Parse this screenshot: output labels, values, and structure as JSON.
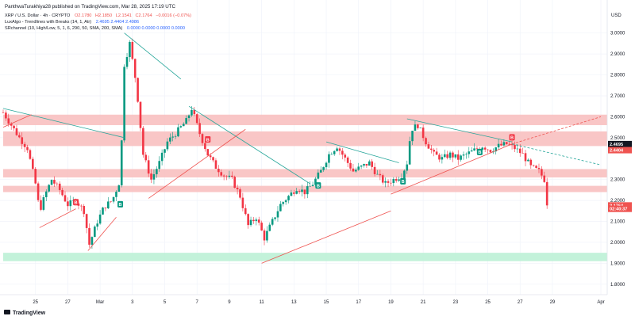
{
  "header": {
    "publisher": "PanthwaTurakhiya28 published on TradingView.com, Mar 28, 2025 17:19 UTC",
    "symbol_line": {
      "symbol": "XRP / U.S. Dollar · 4h · CRYPTO",
      "o": "O2.1780",
      "h": "H2.1850",
      "l": "L2.1541",
      "c": "C2.1764",
      "chg": "−0.0016 (−0.07%)"
    },
    "indicators": [
      {
        "label": "LuxAlgo - Trendlines with Breaks (14, 1, Atr)",
        "values": "2.4695  2.4404  2.4986"
      },
      {
        "label": "SRchannel (10, High/Low, 5, 1, 6, 290, 50, SMA, 200, SMA)",
        "values": "0.0000  0.0000  0.0000  0.0000"
      }
    ]
  },
  "currency_label": "USD",
  "price_tags": [
    {
      "text": "2.4695",
      "value": 2.4695,
      "color": "#131722"
    },
    {
      "text": "2.4404",
      "value": 2.4404,
      "color": "#ef5350"
    },
    {
      "text": "2.1764",
      "value": 2.1764,
      "color": "#ef5350"
    },
    {
      "text": "02:40:37",
      "value": 2.16,
      "color": "#ef5350"
    }
  ],
  "footer_logo": "TradingView",
  "chart_data": {
    "type": "candlestick",
    "title": "",
    "xlabel": "",
    "ylabel": "USD",
    "ylim": [
      1.75,
      3.12
    ],
    "yticks": [
      "3.0000",
      "2.9000",
      "2.8000",
      "2.7000",
      "2.6000",
      "2.5000",
      "2.3000",
      "2.2000",
      "2.1000",
      "2.0000",
      "1.9000",
      "1.8000"
    ],
    "ytick_values": [
      3.0,
      2.9,
      2.8,
      2.7,
      2.6,
      2.5,
      2.3,
      2.2,
      2.1,
      2.0,
      1.9,
      1.8
    ],
    "xlim": [
      "2025-02-23",
      "2025-04-01"
    ],
    "xticks": [
      {
        "label": "25",
        "date": "2025-02-25"
      },
      {
        "label": "27",
        "date": "2025-02-27"
      },
      {
        "label": "Mar",
        "date": "2025-03-01"
      },
      {
        "label": "3",
        "date": "2025-03-03"
      },
      {
        "label": "5",
        "date": "2025-03-05"
      },
      {
        "label": "7",
        "date": "2025-03-07"
      },
      {
        "label": "9",
        "date": "2025-03-09"
      },
      {
        "label": "11",
        "date": "2025-03-11"
      },
      {
        "label": "13",
        "date": "2025-03-13"
      },
      {
        "label": "15",
        "date": "2025-03-15"
      },
      {
        "label": "17",
        "date": "2025-03-17"
      },
      {
        "label": "19",
        "date": "2025-03-19"
      },
      {
        "label": "21",
        "date": "2025-03-21"
      },
      {
        "label": "23",
        "date": "2025-03-23"
      },
      {
        "label": "25",
        "date": "2025-03-25"
      },
      {
        "label": "27",
        "date": "2025-03-27"
      },
      {
        "label": "29",
        "date": "2025-03-29"
      },
      {
        "label": "Apr",
        "date": "2025-04-01"
      }
    ],
    "close_path": [
      [
        "2025-02-23T00:00",
        2.62
      ],
      [
        "2025-02-23T12:00",
        2.56
      ],
      [
        "2025-02-24T00:00",
        2.5
      ],
      [
        "2025-02-24T12:00",
        2.45
      ],
      [
        "2025-02-25T00:00",
        2.28
      ],
      [
        "2025-02-25T06:00",
        2.15
      ],
      [
        "2025-02-25T16:00",
        2.24
      ],
      [
        "2025-02-26T00:00",
        2.3
      ],
      [
        "2025-02-26T12:00",
        2.25
      ],
      [
        "2025-02-27T00:00",
        2.18
      ],
      [
        "2025-02-27T12:00",
        2.2
      ],
      [
        "2025-02-28T00:00",
        2.15
      ],
      [
        "2025-02-28T08:00",
        1.99
      ],
      [
        "2025-02-28T20:00",
        2.1
      ],
      [
        "2025-03-01T06:00",
        2.17
      ],
      [
        "2025-03-01T18:00",
        2.2
      ],
      [
        "2025-03-02T06:00",
        2.3
      ],
      [
        "2025-03-02T12:00",
        2.85
      ],
      [
        "2025-03-02T20:00",
        2.95
      ],
      [
        "2025-03-03T06:00",
        2.75
      ],
      [
        "2025-03-03T16:00",
        2.42
      ],
      [
        "2025-03-04T04:00",
        2.3
      ],
      [
        "2025-03-04T16:00",
        2.38
      ],
      [
        "2025-03-05T04:00",
        2.48
      ],
      [
        "2025-03-05T16:00",
        2.52
      ],
      [
        "2025-03-06T08:00",
        2.58
      ],
      [
        "2025-03-06T16:00",
        2.64
      ],
      [
        "2025-03-07T04:00",
        2.52
      ],
      [
        "2025-03-07T16:00",
        2.42
      ],
      [
        "2025-03-08T04:00",
        2.36
      ],
      [
        "2025-03-08T16:00",
        2.32
      ],
      [
        "2025-03-09T04:00",
        2.3
      ],
      [
        "2025-03-09T16:00",
        2.22
      ],
      [
        "2025-03-10T04:00",
        2.08
      ],
      [
        "2025-03-10T16:00",
        2.12
      ],
      [
        "2025-03-11T04:00",
        2.02
      ],
      [
        "2025-03-11T16:00",
        2.1
      ],
      [
        "2025-03-12T04:00",
        2.18
      ],
      [
        "2025-03-12T16:00",
        2.22
      ],
      [
        "2025-03-13T04:00",
        2.26
      ],
      [
        "2025-03-13T16:00",
        2.24
      ],
      [
        "2025-03-14T04:00",
        2.28
      ],
      [
        "2025-03-14T16:00",
        2.34
      ],
      [
        "2025-03-15T04:00",
        2.42
      ],
      [
        "2025-03-15T16:00",
        2.46
      ],
      [
        "2025-03-16T04:00",
        2.4
      ],
      [
        "2025-03-16T16:00",
        2.34
      ],
      [
        "2025-03-17T04:00",
        2.36
      ],
      [
        "2025-03-17T16:00",
        2.38
      ],
      [
        "2025-03-18T04:00",
        2.32
      ],
      [
        "2025-03-18T16:00",
        2.28
      ],
      [
        "2025-03-19T04:00",
        2.3
      ],
      [
        "2025-03-19T16:00",
        2.32
      ],
      [
        "2025-03-20T00:00",
        2.38
      ],
      [
        "2025-03-20T06:00",
        2.54
      ],
      [
        "2025-03-20T16:00",
        2.56
      ],
      [
        "2025-03-21T04:00",
        2.48
      ],
      [
        "2025-03-21T16:00",
        2.42
      ],
      [
        "2025-03-22T04:00",
        2.4
      ],
      [
        "2025-03-22T16:00",
        2.42
      ],
      [
        "2025-03-23T04:00",
        2.4
      ],
      [
        "2025-03-23T16:00",
        2.42
      ],
      [
        "2025-03-24T04:00",
        2.44
      ],
      [
        "2025-03-24T16:00",
        2.46
      ],
      [
        "2025-03-25T04:00",
        2.44
      ],
      [
        "2025-03-25T16:00",
        2.46
      ],
      [
        "2025-03-26T04:00",
        2.47
      ],
      [
        "2025-03-26T16:00",
        2.45
      ],
      [
        "2025-03-27T04:00",
        2.42
      ],
      [
        "2025-03-27T16:00",
        2.36
      ],
      [
        "2025-03-28T04:00",
        2.34
      ],
      [
        "2025-03-28T12:00",
        2.3
      ],
      [
        "2025-03-28T17:00",
        2.18
      ]
    ],
    "last_close": 2.1764,
    "sr_zones": [
      {
        "low": 2.56,
        "high": 2.61,
        "color": "#f8bcbc"
      },
      {
        "low": 2.46,
        "high": 2.53,
        "color": "#f8bcbc"
      },
      {
        "low": 2.31,
        "high": 2.35,
        "color": "#f8bcbc"
      },
      {
        "low": 2.24,
        "high": 2.27,
        "color": "#f8bcbc"
      },
      {
        "low": 1.91,
        "high": 1.95,
        "color": "#b9f0d4"
      }
    ],
    "trendlines": [
      {
        "color": "#26a69a",
        "from": [
          "2025-02-23T00:00",
          2.64
        ],
        "to": [
          "2025-03-02T12:00",
          2.5
        ]
      },
      {
        "color": "#26a69a",
        "from": [
          "2025-03-02T12:00",
          3.0
        ],
        "to": [
          "2025-03-06T00:00",
          2.78
        ]
      },
      {
        "color": "#26a69a",
        "from": [
          "2025-03-06T12:00",
          2.65
        ],
        "to": [
          "2025-03-14T00:00",
          2.28
        ]
      },
      {
        "color": "#26a69a",
        "from": [
          "2025-03-15T00:00",
          2.48
        ],
        "to": [
          "2025-03-19T12:00",
          2.38
        ]
      },
      {
        "color": "#26a69a",
        "from": [
          "2025-03-20T00:00",
          2.59
        ],
        "to": [
          "2025-03-26T12:00",
          2.48
        ]
      },
      {
        "color": "#ef5350",
        "from": [
          "2025-02-23T00:00",
          2.55
        ],
        "to": [
          "2025-02-24T18:00",
          2.61
        ]
      },
      {
        "color": "#ef5350",
        "from": [
          "2025-02-25T06:00",
          2.07
        ],
        "to": [
          "2025-02-27T12:00",
          2.16
        ]
      },
      {
        "color": "#ef5350",
        "from": [
          "2025-02-28T06:00",
          1.96
        ],
        "to": [
          "2025-03-02T00:00",
          2.12
        ]
      },
      {
        "color": "#ef5350",
        "from": [
          "2025-03-04T00:00",
          2.21
        ],
        "to": [
          "2025-03-10T00:00",
          2.54
        ]
      },
      {
        "color": "#ef5350",
        "from": [
          "2025-03-11T00:00",
          1.9
        ],
        "to": [
          "2025-03-19T00:00",
          2.15
        ]
      },
      {
        "color": "#ef5350",
        "from": [
          "2025-03-19T00:00",
          2.23
        ],
        "to": [
          "2025-03-26T12:00",
          2.47
        ]
      }
    ],
    "projections": [
      {
        "color": "#ef5350",
        "from": [
          "2025-03-26T12:00",
          2.47
        ],
        "to": [
          "2025-04-01T00:00",
          2.6
        ]
      },
      {
        "color": "#26a69a",
        "from": [
          "2025-03-26T12:00",
          2.47
        ],
        "to": [
          "2025-04-01T00:00",
          2.37
        ]
      }
    ],
    "signals": [
      {
        "label": "B",
        "type": "bear",
        "date": "2025-02-27T12:00",
        "price": 2.19
      },
      {
        "label": "B",
        "type": "bull",
        "date": "2025-03-02T06:00",
        "price": 2.18
      },
      {
        "label": "B",
        "type": "bear",
        "date": "2025-03-07T16:00",
        "price": 2.49
      },
      {
        "label": "B",
        "type": "bull",
        "date": "2025-03-14T12:00",
        "price": 2.27
      },
      {
        "label": "B",
        "type": "bull",
        "date": "2025-03-19T18:00",
        "price": 2.29
      },
      {
        "label": "B",
        "type": "bull",
        "date": "2025-03-24T12:00",
        "price": 2.43
      },
      {
        "label": "B",
        "type": "bear",
        "date": "2025-03-26T12:00",
        "price": 2.5
      }
    ]
  }
}
